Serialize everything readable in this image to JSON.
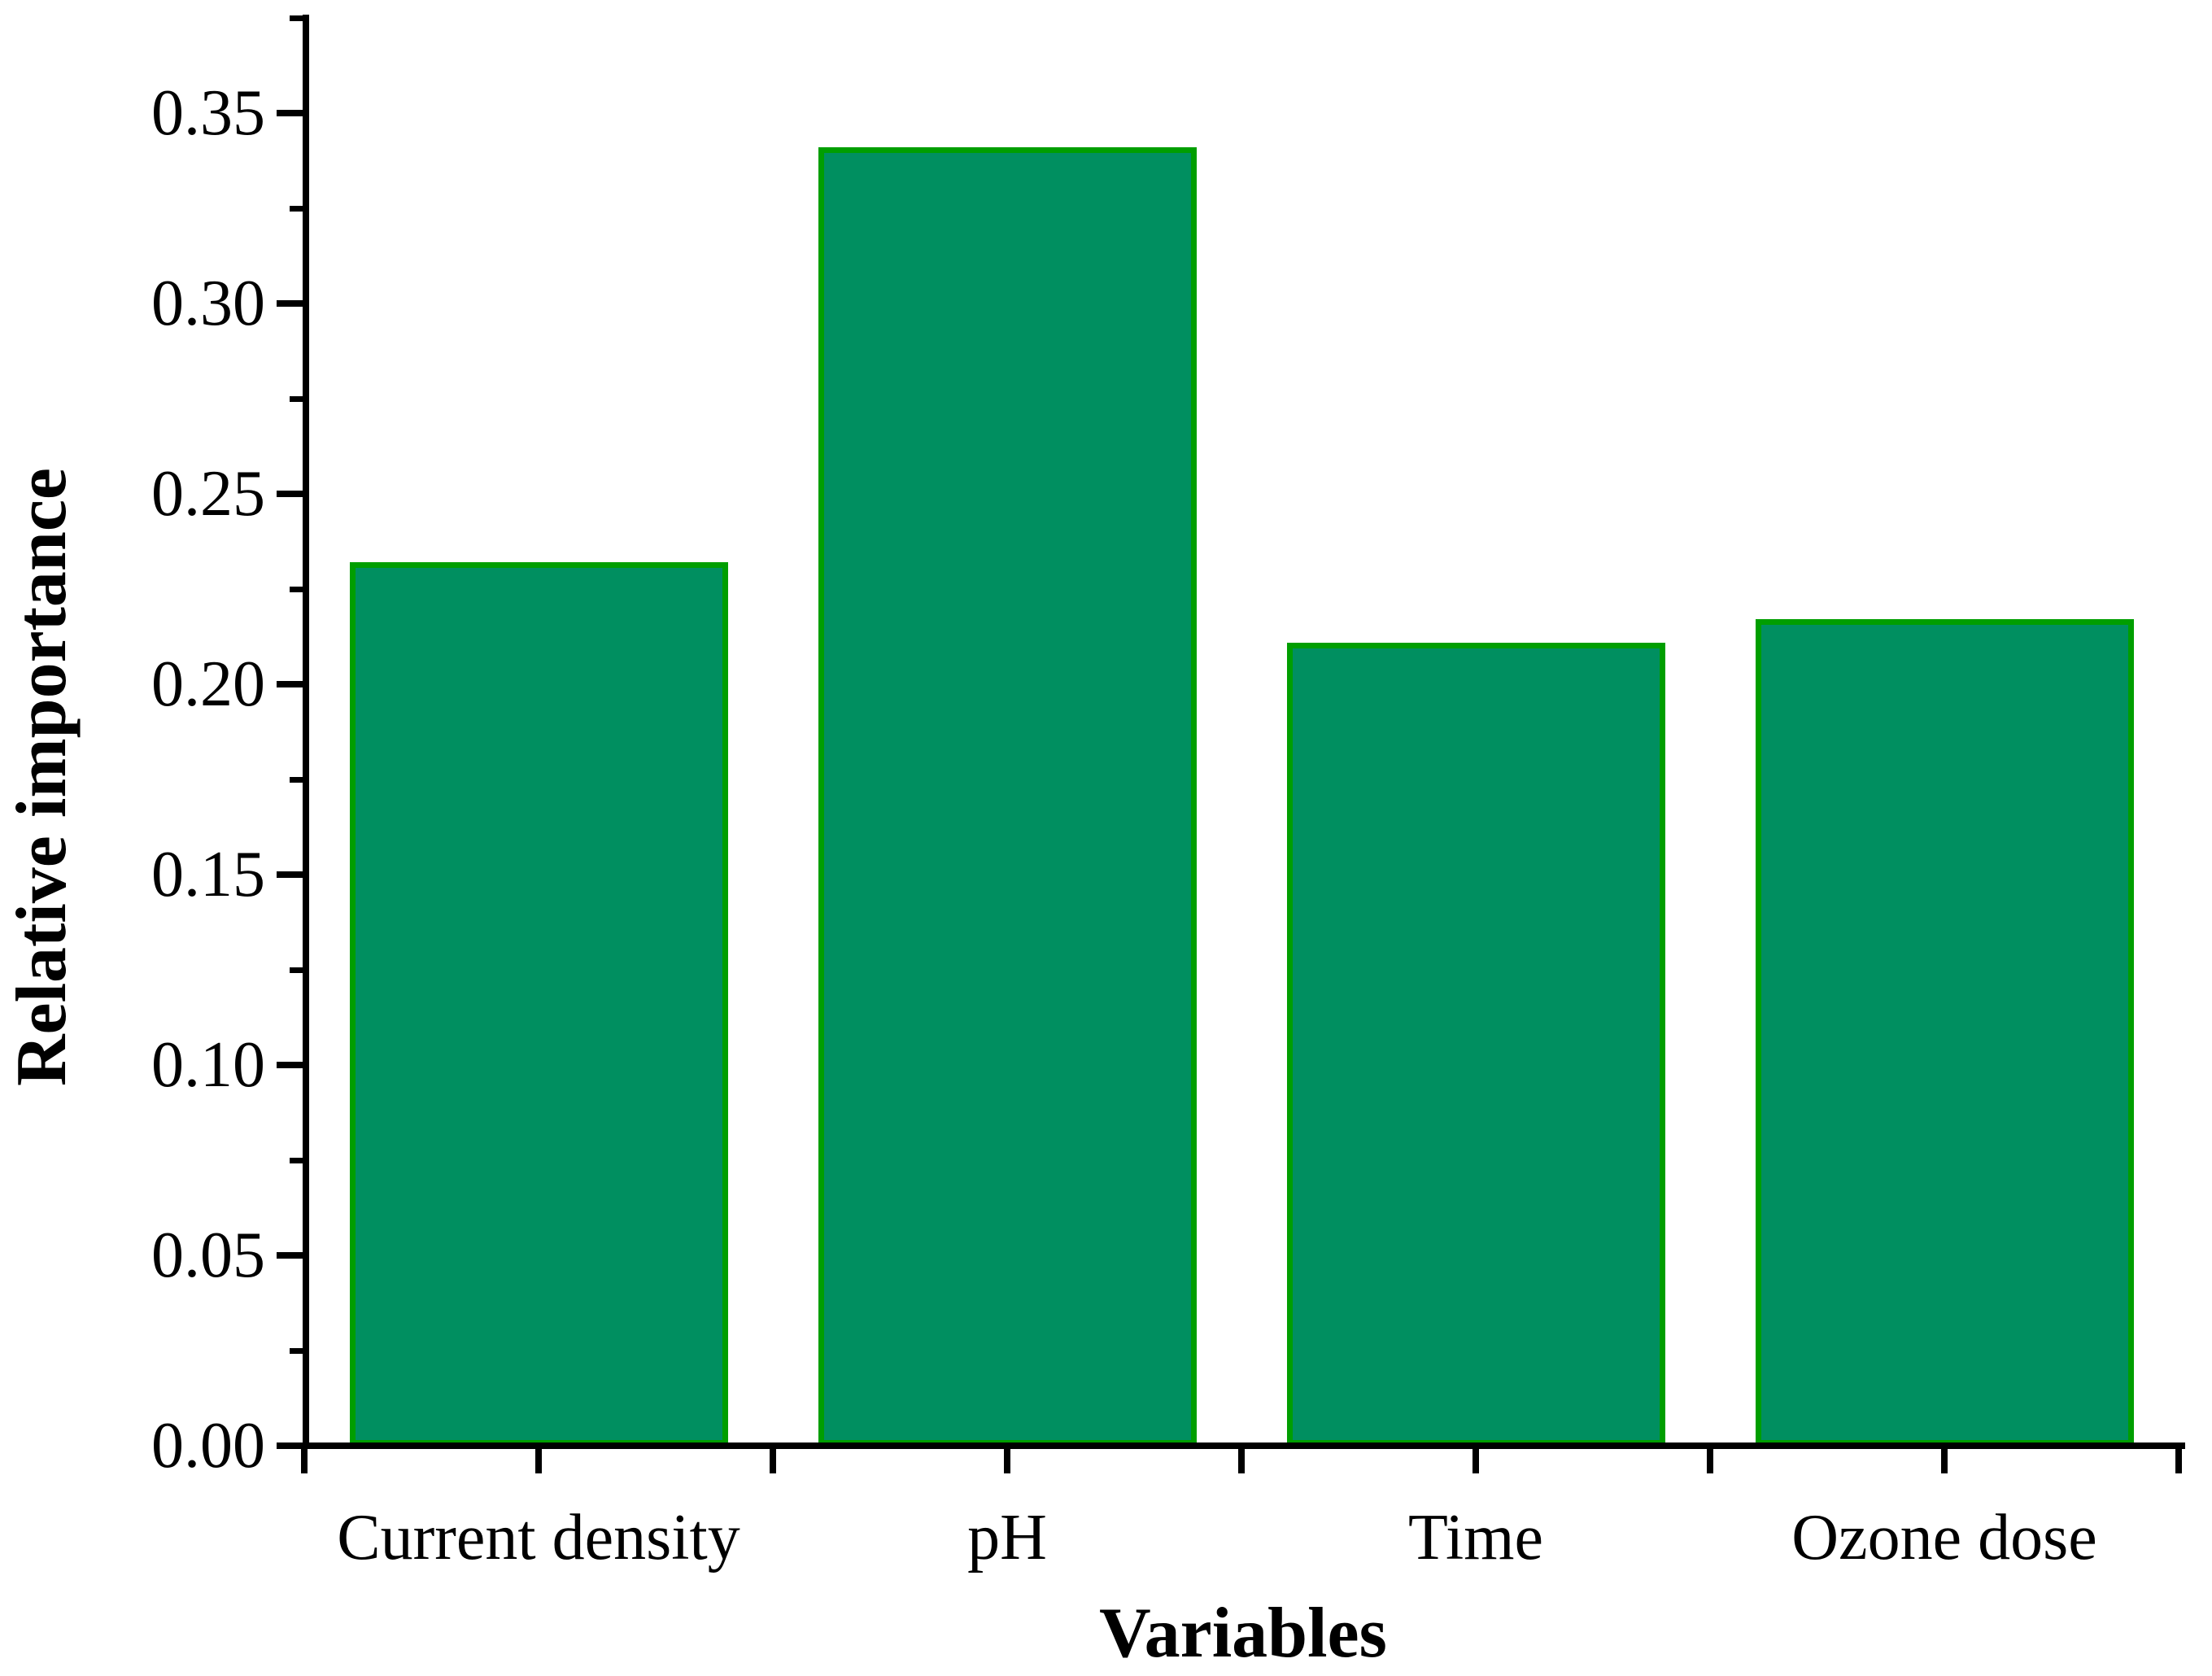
{
  "figure": {
    "background_color": "#ffffff"
  },
  "chart_data": {
    "type": "bar",
    "title": "",
    "categories": [
      "Current density",
      "pH",
      "Time",
      "Ozone dose"
    ],
    "values": [
      0.232,
      0.341,
      0.211,
      0.217
    ],
    "xlabel": "Variables",
    "ylabel": "Relative importance",
    "ylim": [
      0.0,
      0.375
    ],
    "ytick_values": [
      0.0,
      0.05,
      0.1,
      0.15,
      0.2,
      0.25,
      0.3,
      0.35
    ],
    "ytick_labels": [
      "0.00",
      "0.05",
      "0.10",
      "0.15",
      "0.20",
      "0.25",
      "0.30",
      "0.35"
    ],
    "yminor_tick_values": [
      0.025,
      0.075,
      0.125,
      0.175,
      0.225,
      0.275,
      0.325,
      0.375
    ],
    "grid": false,
    "legend_position": "none",
    "bar_fill_color": "#008f60",
    "bar_border_color": "#009e00",
    "axis_color": "#000000",
    "text_color": "#000000"
  }
}
